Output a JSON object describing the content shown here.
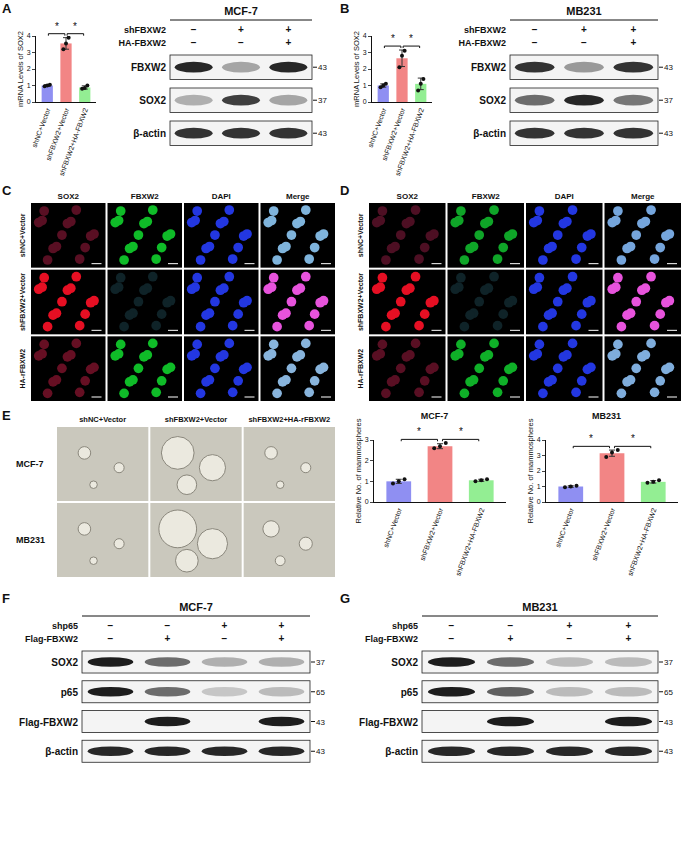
{
  "chart_data": [
    {
      "type": "bar",
      "ylabel": "mRNA Levels of SOX2",
      "categories": [
        "shNC+Vector",
        "shFBXW2+Vector",
        "shFBXW2+HA-FBXW2"
      ],
      "values": [
        1.0,
        3.55,
        0.88
      ],
      "errors": [
        0.05,
        0.35,
        0.1
      ],
      "points": [
        [
          0.95,
          1.0,
          1.05
        ],
        [
          3.2,
          3.55,
          3.9
        ],
        [
          0.8,
          0.85,
          1.0
        ]
      ],
      "colors": [
        "#8f8ff2",
        "#f28585",
        "#93ee93"
      ],
      "ylim": [
        0,
        4
      ],
      "yticks": [
        0,
        1,
        2,
        3,
        4
      ],
      "grid": false,
      "significance": [
        {
          "between": [
            "shNC+Vector",
            "shFBXW2+Vector"
          ],
          "text": "*"
        },
        {
          "between": [
            "shFBXW2+Vector",
            "shFBXW2+HA-FBXW2"
          ],
          "text": "*"
        }
      ]
    },
    {
      "type": "bar",
      "ylabel": "mRNA Levels of SOX2",
      "categories": [
        "shNC+Vector",
        "shFBXW2+Vector",
        "shFBXW2+HA-FBXW2"
      ],
      "values": [
        1.0,
        2.65,
        1.1
      ],
      "errors": [
        0.1,
        0.5,
        0.35
      ],
      "points": [
        [
          0.9,
          1.0,
          1.1
        ],
        [
          2.1,
          2.8,
          3.1
        ],
        [
          0.7,
          1.1,
          1.4
        ]
      ],
      "colors": [
        "#8f8ff2",
        "#f28585",
        "#93ee93"
      ],
      "ylim": [
        0,
        4
      ],
      "yticks": [
        0,
        1,
        2,
        3,
        4
      ],
      "grid": false,
      "significance": [
        {
          "between": [
            "shNC+Vector",
            "shFBXW2+Vector"
          ],
          "text": "*"
        },
        {
          "between": [
            "shFBXW2+Vector",
            "shFBXW2+HA-FBXW2"
          ],
          "text": "*"
        }
      ]
    },
    {
      "type": "bar",
      "title": "MCF-7",
      "ylabel": "Relative No. of mammospheres",
      "categories": [
        "shNC+Vector",
        "shFBXW2+Vector",
        "shFBXW2+HA-FBXW2"
      ],
      "values": [
        1.0,
        2.7,
        1.05
      ],
      "errors": [
        0.1,
        0.12,
        0.05
      ],
      "points": [
        [
          0.9,
          1.0,
          1.1
        ],
        [
          2.6,
          2.7,
          2.85
        ],
        [
          1.0,
          1.05,
          1.1
        ]
      ],
      "colors": [
        "#8f8ff2",
        "#f28585",
        "#93ee93"
      ],
      "ylim": [
        0,
        3
      ],
      "yticks": [
        0,
        1,
        2,
        3
      ],
      "grid": false,
      "significance": [
        {
          "between": [
            "shNC+Vector",
            "shFBXW2+Vector"
          ],
          "text": "*"
        },
        {
          "between": [
            "shFBXW2+Vector",
            "shFBXW2+HA-FBXW2"
          ],
          "text": "*"
        }
      ]
    },
    {
      "type": "bar",
      "title": "MB231",
      "ylabel": "Relative No. of mammospheres",
      "categories": [
        "shNC+Vector",
        "shFBXW2+Vector",
        "shFBXW2+HA-FBXW2"
      ],
      "values": [
        1.0,
        3.15,
        1.3
      ],
      "errors": [
        0.05,
        0.2,
        0.08
      ],
      "points": [
        [
          0.95,
          1.0,
          1.05
        ],
        [
          2.9,
          3.2,
          3.35
        ],
        [
          1.25,
          1.3,
          1.4
        ]
      ],
      "colors": [
        "#8f8ff2",
        "#f28585",
        "#93ee93"
      ],
      "ylim": [
        0,
        4
      ],
      "yticks": [
        0,
        1,
        2,
        3,
        4
      ],
      "grid": false,
      "significance": [
        {
          "between": [
            "shNC+Vector",
            "shFBXW2+Vector"
          ],
          "text": "*"
        },
        {
          "between": [
            "shFBXW2+Vector",
            "shFBXW2+HA-FBXW2"
          ],
          "text": "*"
        }
      ]
    }
  ],
  "figure": {
    "A": {
      "letter": "A",
      "blot": {
        "title": "MCF-7",
        "conditions": [
          {
            "label": "shFBXW2",
            "marks": [
              "−",
              "+",
              "+"
            ]
          },
          {
            "label": "HA-FBXW2",
            "marks": [
              "−",
              "−",
              "+"
            ]
          }
        ],
        "bands": [
          {
            "label": "FBXW2",
            "mw": "43",
            "intensity": [
              0.9,
              0.35,
              0.9
            ]
          },
          {
            "label": "SOX2",
            "mw": "37",
            "intensity": [
              0.3,
              0.8,
              0.35
            ]
          },
          {
            "label": "β-actin",
            "mw": "43",
            "intensity": [
              0.85,
              0.85,
              0.85
            ]
          }
        ]
      }
    },
    "B": {
      "letter": "B",
      "blot": {
        "title": "MB231",
        "conditions": [
          {
            "label": "shFBXW2",
            "marks": [
              "−",
              "+",
              "+"
            ]
          },
          {
            "label": "HA-FBXW2",
            "marks": [
              "−",
              "−",
              "+"
            ]
          }
        ],
        "bands": [
          {
            "label": "FBXW2",
            "mw": "43",
            "intensity": [
              0.85,
              0.4,
              0.85
            ]
          },
          {
            "label": "SOX2",
            "mw": "37",
            "intensity": [
              0.6,
              0.9,
              0.55
            ]
          },
          {
            "label": "β-actin",
            "mw": "43",
            "intensity": [
              0.85,
              0.85,
              0.85
            ]
          }
        ]
      }
    },
    "C": {
      "letter": "C",
      "images": {
        "columns": [
          "SOX2",
          "FBXW2",
          "DAPI",
          "Merge"
        ],
        "rows": [
          {
            "label": "shNC+Vector",
            "sox2": 0.35,
            "fbxw2": 0.8
          },
          {
            "label": "shFBXW2+Vector",
            "sox2": 0.9,
            "fbxw2": 0.15
          },
          {
            "label": "HA-rFBXW2",
            "sox2": 0.4,
            "fbxw2": 0.8
          }
        ]
      }
    },
    "D": {
      "letter": "D",
      "images": {
        "columns": [
          "SOX2",
          "FBXW2",
          "DAPI",
          "Merge"
        ],
        "rows": [
          {
            "label": "shNC+Vector",
            "sox2": 0.3,
            "fbxw2": 0.7
          },
          {
            "label": "shFBXW2+Vector",
            "sox2": 0.9,
            "fbxw2": 0.15
          },
          {
            "label": "HA-rFBXW2",
            "sox2": 0.35,
            "fbxw2": 0.75
          }
        ]
      }
    },
    "E": {
      "letter": "E",
      "images": {
        "columns": [
          "shNC+Vector",
          "shFBXW2+Vector",
          "shFBXW2+HA-rFBXW2"
        ],
        "rows": [
          {
            "label": "MCF-7",
            "sphere_size": [
              1,
              2.6,
              1
            ]
          },
          {
            "label": "MB231",
            "sphere_size": [
              1,
              3,
              1.3
            ]
          }
        ]
      }
    },
    "F": {
      "letter": "F",
      "blot": {
        "title": "MCF-7",
        "conditions": [
          {
            "label": "shp65",
            "marks": [
              "−",
              "−",
              "+",
              "+"
            ]
          },
          {
            "label": "Flag-FBXW2",
            "marks": [
              "−",
              "+",
              "−",
              "+"
            ]
          }
        ],
        "bands": [
          {
            "label": "SOX2",
            "mw": "37",
            "intensity": [
              0.95,
              0.6,
              0.3,
              0.3
            ]
          },
          {
            "label": "p65",
            "mw": "65",
            "intensity": [
              0.95,
              0.6,
              0.2,
              0.25
            ]
          },
          {
            "label": "Flag-FBXW2",
            "mw": "43",
            "intensity": [
              0,
              0.95,
              0,
              0.95
            ]
          },
          {
            "label": "β-actin",
            "mw": "43",
            "intensity": [
              0.9,
              0.9,
              0.9,
              0.9
            ]
          }
        ]
      }
    },
    "G": {
      "letter": "G",
      "blot": {
        "title": "MB231",
        "conditions": [
          {
            "label": "shp65",
            "marks": [
              "−",
              "−",
              "+",
              "+"
            ]
          },
          {
            "label": "Flag-FBXW2",
            "marks": [
              "−",
              "+",
              "−",
              "+"
            ]
          }
        ],
        "bands": [
          {
            "label": "SOX2",
            "mw": "37",
            "intensity": [
              0.95,
              0.6,
              0.25,
              0.25
            ]
          },
          {
            "label": "p65",
            "mw": "65",
            "intensity": [
              0.95,
              0.65,
              0.25,
              0.25
            ]
          },
          {
            "label": "Flag-FBXW2",
            "mw": "43",
            "intensity": [
              0,
              0.95,
              0,
              0.95
            ]
          },
          {
            "label": "β-actin",
            "mw": "43",
            "intensity": [
              0.9,
              0.9,
              0.9,
              0.9
            ]
          }
        ]
      }
    }
  }
}
